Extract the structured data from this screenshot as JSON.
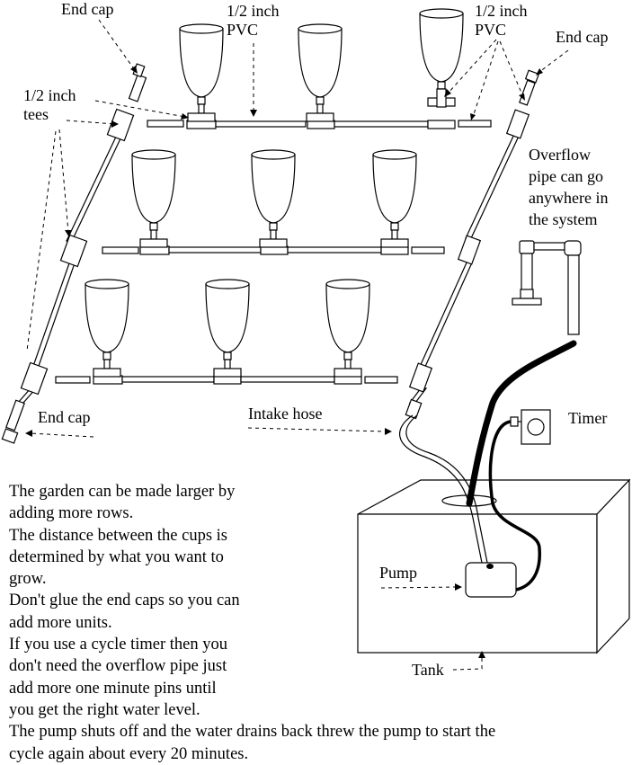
{
  "labels": {
    "end_cap_top_left": "End cap",
    "pvc_top": [
      "1/2 inch",
      "PVC"
    ],
    "pvc_right": [
      "1/2 inch",
      "PVC"
    ],
    "end_cap_top_right": "End cap",
    "tees": [
      "1/2 inch",
      "tees"
    ],
    "overflow": [
      "Overflow",
      "pipe can go",
      "anywhere in",
      "the system"
    ],
    "end_cap_bottom": "End cap",
    "intake_hose": "Intake hose",
    "timer": "Timer",
    "pump": "Pump",
    "tank": "Tank"
  },
  "notes": [
    "The garden can be made larger  by",
    "adding more rows.",
    "The distance between the cups is",
    "determined by what you want to",
    "grow.",
    "Don't glue the end caps so you can",
    "add more units.",
    "If you use a cycle timer then you",
    "don't need the overflow pipe just",
    "add more one minute pins until",
    "you get the right water level.",
    "The pump shuts off and the water drains back threw the pump to start the",
    "cycle again about every 20 minutes."
  ]
}
